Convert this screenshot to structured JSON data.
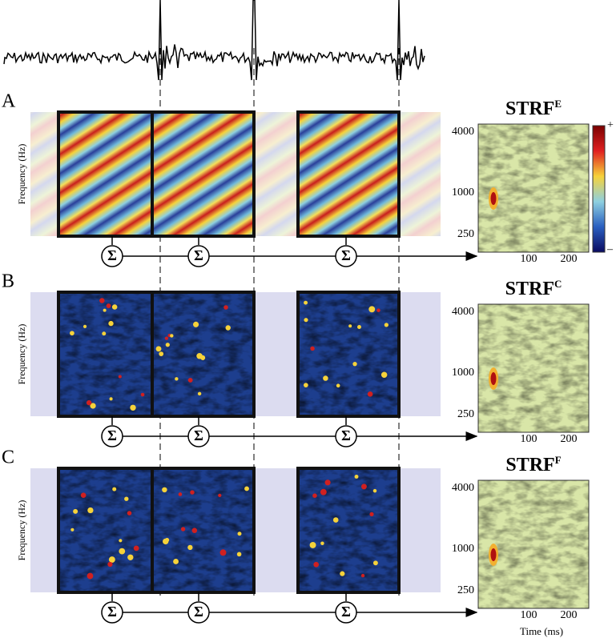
{
  "panels": [
    {
      "label": "A",
      "y_axis_label": "Frequency (Hz)",
      "strf": {
        "title": "STRF",
        "superscript": "E",
        "yticks": [
          4000,
          1000,
          250
        ],
        "xticks": [
          100,
          200
        ]
      }
    },
    {
      "label": "B",
      "y_axis_label": "Frequency (Hz)",
      "strf": {
        "title": "STRF",
        "superscript": "C",
        "yticks": [
          4000,
          1000,
          250
        ],
        "xticks": [
          100,
          200
        ]
      }
    },
    {
      "label": "C",
      "y_axis_label": "Frequency (Hz)",
      "strf": {
        "title": "STRF",
        "superscript": "F",
        "yticks": [
          4000,
          1000,
          250
        ],
        "xticks": [
          100,
          200
        ]
      }
    }
  ],
  "sum_symbol": "Σ",
  "colorbar": {
    "max_label": "+",
    "min_label": "–"
  },
  "time_axis_label": "Time (ms)"
}
